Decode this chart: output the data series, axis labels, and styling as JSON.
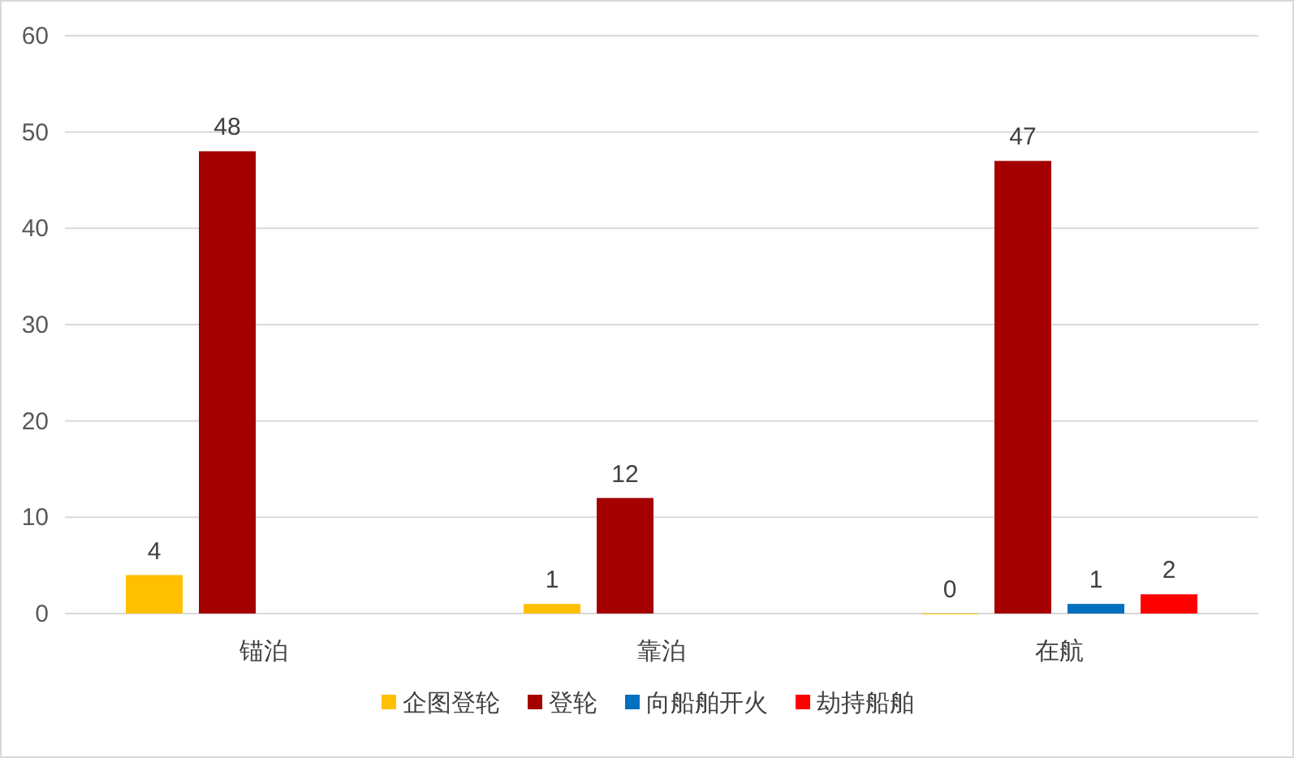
{
  "chart_data": {
    "type": "bar",
    "categories": [
      "锚泊",
      "靠泊",
      "在航"
    ],
    "series": [
      {
        "name": "企图登轮",
        "color": "#ffc000",
        "values": [
          4,
          1,
          0
        ]
      },
      {
        "name": "登轮",
        "color": "#a50000",
        "values": [
          48,
          12,
          47
        ]
      },
      {
        "name": "向船舶开火",
        "color": "#0070c0",
        "values": [
          null,
          null,
          1
        ]
      },
      {
        "name": "劫持船舶",
        "color": "#ff0000",
        "values": [
          null,
          null,
          2
        ]
      }
    ],
    "ylim": [
      0,
      60
    ],
    "yticks": [
      0,
      10,
      20,
      30,
      40,
      50,
      60
    ],
    "grid": "y",
    "legend": "bottom",
    "data_labels": true
  }
}
